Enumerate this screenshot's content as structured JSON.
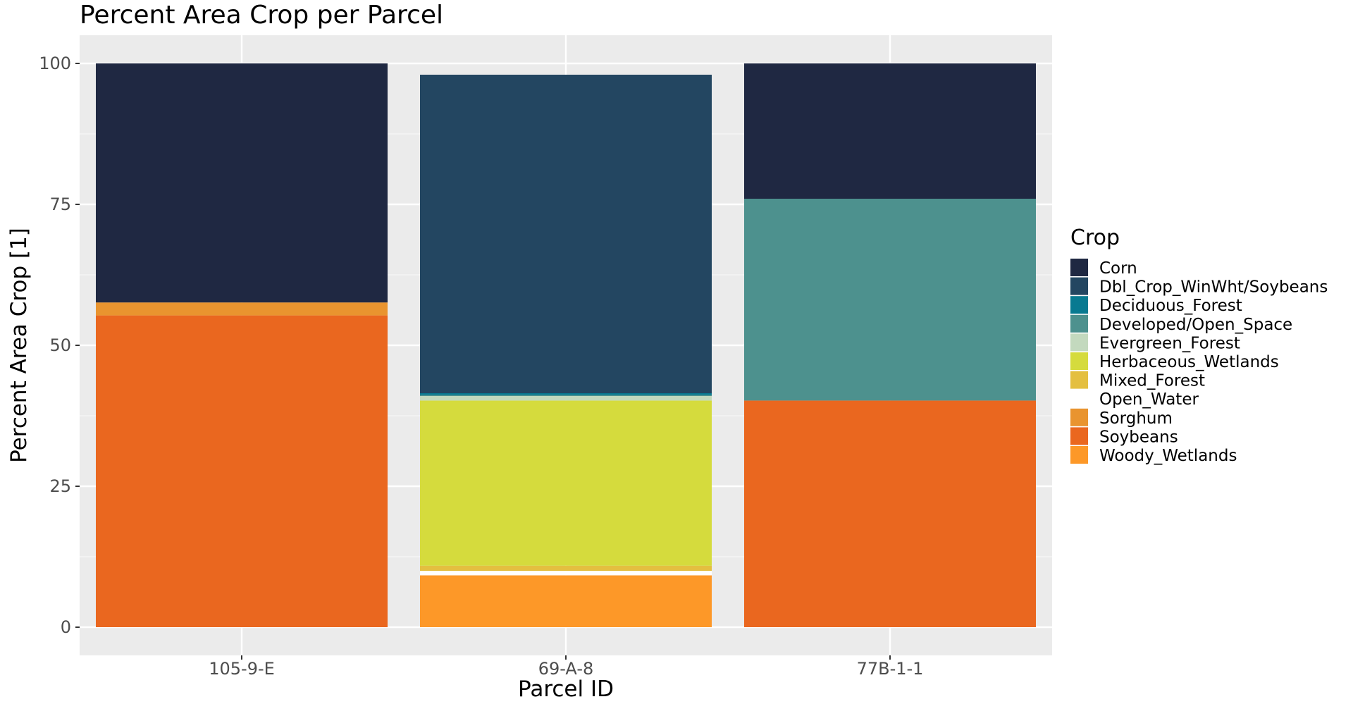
{
  "chart_data": {
    "type": "bar",
    "stacked": true,
    "title": "Percent Area Crop per Parcel",
    "xlabel": "Parcel ID",
    "ylabel": "Percent Area Crop [1]",
    "ylim": [
      0,
      105
    ],
    "yticks": [
      0,
      25,
      50,
      75,
      100
    ],
    "categories": [
      "105-9-E",
      "69-A-8",
      "77B-1-1"
    ],
    "grid": true,
    "legend": {
      "title": "Crop",
      "position": "right"
    },
    "series": [
      {
        "name": "Woody_Wetlands",
        "color": "#FD9828",
        "values": [
          0,
          9.2,
          0
        ]
      },
      {
        "name": "Soybeans",
        "color": "#EA671F",
        "values": [
          55.3,
          0,
          40.2
        ]
      },
      {
        "name": "Sorghum",
        "color": "#E9942F",
        "values": [
          2.3,
          0,
          0
        ]
      },
      {
        "name": "Open_Water",
        "color": "#FFFFFF",
        "values": [
          0,
          0.8,
          0
        ]
      },
      {
        "name": "Mixed_Forest",
        "color": "#E4BF40",
        "values": [
          0,
          0.9,
          0
        ]
      },
      {
        "name": "Herbaceous_Wetlands",
        "color": "#D5DB3D",
        "values": [
          0,
          29.3,
          0
        ]
      },
      {
        "name": "Evergreen_Forest",
        "color": "#C3D9BE",
        "values": [
          0,
          0.8,
          0
        ]
      },
      {
        "name": "Developed/Open_Space",
        "color": "#4D918E",
        "values": [
          0,
          0.2,
          35.8
        ]
      },
      {
        "name": "Deciduous_Forest",
        "color": "#087A91",
        "values": [
          0,
          0.3,
          0
        ]
      },
      {
        "name": "Dbl_Crop_WinWht/Soybeans",
        "color": "#234661",
        "values": [
          0,
          56.5,
          0
        ]
      },
      {
        "name": "Corn",
        "color": "#1F2842",
        "values": [
          42.4,
          0,
          24.0
        ]
      }
    ],
    "legend_order": [
      "Corn",
      "Dbl_Crop_WinWht/Soybeans",
      "Deciduous_Forest",
      "Developed/Open_Space",
      "Evergreen_Forest",
      "Herbaceous_Wetlands",
      "Mixed_Forest",
      "Open_Water",
      "Sorghum",
      "Soybeans",
      "Woody_Wetlands"
    ]
  }
}
